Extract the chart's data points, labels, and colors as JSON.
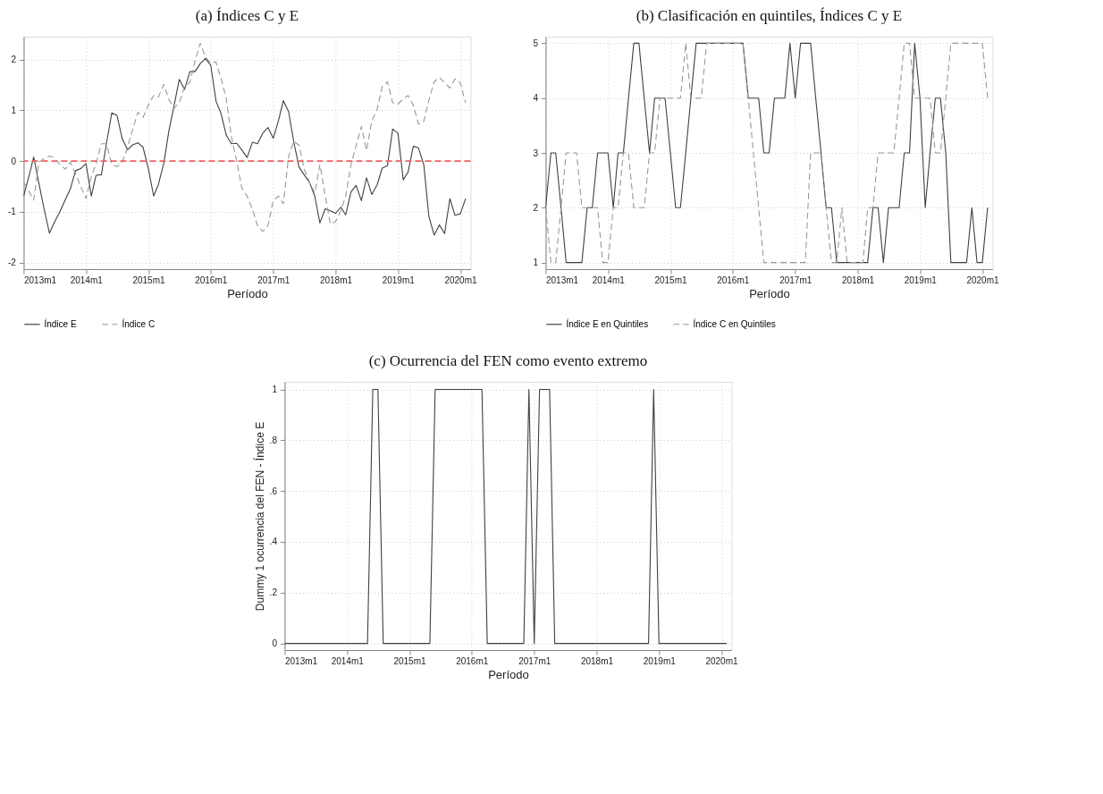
{
  "chart_data": [
    {
      "type": "line",
      "title": "(a) Índices C y E",
      "xlabel": "Período",
      "legend": "bottom",
      "grid": true,
      "x": [
        "2013-01",
        "2013-02",
        "2013-03",
        "2013-04",
        "2013-05",
        "2013-06",
        "2013-07",
        "2013-08",
        "2013-09",
        "2013-10",
        "2013-11",
        "2013-12",
        "2014-01",
        "2014-02",
        "2014-03",
        "2014-04",
        "2014-05",
        "2014-06",
        "2014-07",
        "2014-08",
        "2014-09",
        "2014-10",
        "2014-11",
        "2014-12",
        "2015-01",
        "2015-02",
        "2015-03",
        "2015-04",
        "2015-05",
        "2015-06",
        "2015-07",
        "2015-08",
        "2015-09",
        "2015-10",
        "2015-11",
        "2015-12",
        "2016-01",
        "2016-02",
        "2016-03",
        "2016-04",
        "2016-05",
        "2016-06",
        "2016-07",
        "2016-08",
        "2016-09",
        "2016-10",
        "2016-11",
        "2016-12",
        "2017-01",
        "2017-02",
        "2017-03",
        "2017-04",
        "2017-05",
        "2017-06",
        "2017-07",
        "2017-08",
        "2017-09",
        "2017-10",
        "2017-11",
        "2017-12",
        "2018-01",
        "2018-02",
        "2018-03",
        "2018-04",
        "2018-05",
        "2018-06",
        "2018-07",
        "2018-08",
        "2018-09",
        "2018-10",
        "2018-11",
        "2018-12",
        "2019-01",
        "2019-02",
        "2019-03",
        "2019-04",
        "2019-05",
        "2019-06",
        "2019-07",
        "2019-08",
        "2019-09",
        "2019-10",
        "2019-11",
        "2019-12",
        "2020-01",
        "2020-02"
      ],
      "xlim": [
        "2013-01",
        "2020-03"
      ],
      "xticks": [
        {
          "value": "2013-01",
          "label": "2013m1"
        },
        {
          "value": "2014-01",
          "label": "2014m1"
        },
        {
          "value": "2015-01",
          "label": "2015m1"
        },
        {
          "value": "2016-01",
          "label": "2016m1"
        },
        {
          "value": "2017-01",
          "label": "2017m1"
        },
        {
          "value": "2018-01",
          "label": "2018m1"
        },
        {
          "value": "2019-01",
          "label": "2019m1"
        },
        {
          "value": "2020-01",
          "label": "2020m1"
        }
      ],
      "ylim": [
        -2.13,
        2.45
      ],
      "yticks": [
        -2,
        -1,
        0,
        1,
        2
      ],
      "ref_lines": [
        {
          "axis": "y",
          "value": 0,
          "color": "#f06060",
          "line_style": "dashed"
        }
      ],
      "series": [
        {
          "name": "Índice E",
          "color": "#404040",
          "line_style": "solid",
          "values": [
            -0.69,
            -0.3,
            0.08,
            -0.45,
            -0.95,
            -1.42,
            -1.2,
            -1.0,
            -0.77,
            -0.55,
            -0.19,
            -0.15,
            -0.05,
            -0.69,
            -0.28,
            -0.27,
            0.35,
            0.95,
            0.9,
            0.44,
            0.22,
            0.32,
            0.36,
            0.27,
            -0.15,
            -0.69,
            -0.46,
            -0.05,
            0.59,
            1.1,
            1.61,
            1.41,
            1.76,
            1.76,
            1.92,
            2.02,
            1.89,
            1.18,
            0.94,
            0.51,
            0.34,
            0.35,
            0.22,
            0.07,
            0.37,
            0.34,
            0.55,
            0.66,
            0.45,
            0.8,
            1.19,
            0.97,
            0.38,
            -0.12,
            -0.27,
            -0.42,
            -0.69,
            -1.22,
            -0.94,
            -0.98,
            -1.03,
            -0.91,
            -1.06,
            -0.61,
            -0.48,
            -0.78,
            -0.33,
            -0.66,
            -0.47,
            -0.14,
            -0.09,
            0.63,
            0.55,
            -0.37,
            -0.22,
            0.29,
            0.26,
            -0.07,
            -1.09,
            -1.46,
            -1.26,
            -1.43,
            -0.74,
            -1.07,
            -1.04,
            -0.74
          ]
        },
        {
          "name": "Índice C",
          "color": "#999999",
          "line_style": "dashed",
          "values": [
            -0.42,
            -0.6,
            -0.77,
            -0.02,
            0.05,
            0.1,
            0.06,
            -0.07,
            -0.16,
            -0.02,
            -0.25,
            -0.5,
            -0.74,
            -0.31,
            -0.05,
            0.34,
            0.34,
            -0.07,
            -0.11,
            -0.02,
            0.27,
            0.62,
            0.96,
            0.86,
            1.1,
            1.29,
            1.26,
            1.51,
            1.21,
            1.04,
            1.15,
            1.47,
            1.55,
            1.97,
            2.32,
            2.05,
            1.93,
            1.95,
            1.63,
            1.23,
            0.48,
            0.0,
            -0.53,
            -0.69,
            -0.95,
            -1.27,
            -1.39,
            -1.27,
            -0.78,
            -0.69,
            -0.84,
            0.09,
            0.39,
            0.31,
            -0.15,
            -0.42,
            -0.63,
            -0.07,
            -0.68,
            -1.24,
            -1.19,
            -0.98,
            -0.69,
            -0.07,
            0.3,
            0.68,
            0.21,
            0.79,
            1.02,
            1.47,
            1.56,
            1.15,
            1.12,
            1.23,
            1.29,
            1.1,
            0.73,
            0.78,
            1.2,
            1.56,
            1.65,
            1.54,
            1.44,
            1.62,
            1.54,
            1.15
          ]
        }
      ]
    },
    {
      "type": "line",
      "title": "(b) Clasificación en quintiles, Índices C y E",
      "xlabel": "Período",
      "legend": "bottom",
      "grid": true,
      "x": [
        "2013-01",
        "2013-02",
        "2013-03",
        "2013-04",
        "2013-05",
        "2013-06",
        "2013-07",
        "2013-08",
        "2013-09",
        "2013-10",
        "2013-11",
        "2013-12",
        "2014-01",
        "2014-02",
        "2014-03",
        "2014-04",
        "2014-05",
        "2014-06",
        "2014-07",
        "2014-08",
        "2014-09",
        "2014-10",
        "2014-11",
        "2014-12",
        "2015-01",
        "2015-02",
        "2015-03",
        "2015-04",
        "2015-05",
        "2015-06",
        "2015-07",
        "2015-08",
        "2015-09",
        "2015-10",
        "2015-11",
        "2015-12",
        "2016-01",
        "2016-02",
        "2016-03",
        "2016-04",
        "2016-05",
        "2016-06",
        "2016-07",
        "2016-08",
        "2016-09",
        "2016-10",
        "2016-11",
        "2016-12",
        "2017-01",
        "2017-02",
        "2017-03",
        "2017-04",
        "2017-05",
        "2017-06",
        "2017-07",
        "2017-08",
        "2017-09",
        "2017-10",
        "2017-11",
        "2017-12",
        "2018-01",
        "2018-02",
        "2018-03",
        "2018-04",
        "2018-05",
        "2018-06",
        "2018-07",
        "2018-08",
        "2018-09",
        "2018-10",
        "2018-11",
        "2018-12",
        "2019-01",
        "2019-02",
        "2019-03",
        "2019-04",
        "2019-05",
        "2019-06",
        "2019-07",
        "2019-08",
        "2019-09",
        "2019-10",
        "2019-11",
        "2019-12",
        "2020-01",
        "2020-02"
      ],
      "xlim": [
        "2013-01",
        "2020-03"
      ],
      "xticks": [
        {
          "value": "2013-01",
          "label": "2013m1"
        },
        {
          "value": "2014-01",
          "label": "2014m1"
        },
        {
          "value": "2015-01",
          "label": "2015m1"
        },
        {
          "value": "2016-01",
          "label": "2016m1"
        },
        {
          "value": "2017-01",
          "label": "2017m1"
        },
        {
          "value": "2018-01",
          "label": "2018m1"
        },
        {
          "value": "2019-01",
          "label": "2019m1"
        },
        {
          "value": "2020-01",
          "label": "2020m1"
        }
      ],
      "ylim": [
        0.88,
        5.12
      ],
      "yticks": [
        1,
        2,
        3,
        4,
        5
      ],
      "series": [
        {
          "name": "Índice E en Quintiles",
          "color": "#404040",
          "line_style": "solid",
          "values": [
            2,
            3,
            3,
            2,
            1,
            1,
            1,
            1,
            2,
            2,
            3,
            3,
            3,
            2,
            3,
            3,
            4,
            5,
            5,
            4,
            3,
            4,
            4,
            4,
            3,
            2,
            2,
            3,
            4,
            5,
            5,
            5,
            5,
            5,
            5,
            5,
            5,
            5,
            5,
            4,
            4,
            4,
            3,
            3,
            4,
            4,
            4,
            5,
            4,
            5,
            5,
            5,
            4,
            3,
            2,
            2,
            1,
            1,
            1,
            1,
            1,
            1,
            1,
            2,
            2,
            1,
            2,
            2,
            2,
            3,
            3,
            5,
            4,
            2,
            3,
            4,
            4,
            3,
            1,
            1,
            1,
            1,
            2,
            1,
            1,
            2
          ]
        },
        {
          "name": "Índice C en Quintiles",
          "color": "#999999",
          "line_style": "dashed",
          "values": [
            2,
            1,
            1,
            2,
            3,
            3,
            3,
            2,
            2,
            2,
            2,
            1,
            1,
            2,
            2,
            3,
            3,
            2,
            2,
            2,
            3,
            3,
            4,
            4,
            4,
            4,
            4,
            5,
            4,
            4,
            4,
            5,
            5,
            5,
            5,
            5,
            5,
            5,
            5,
            4,
            3,
            2,
            1,
            1,
            1,
            1,
            1,
            1,
            1,
            1,
            1,
            3,
            3,
            3,
            2,
            1,
            1,
            2,
            1,
            1,
            1,
            1,
            2,
            2,
            3,
            3,
            3,
            3,
            4,
            5,
            5,
            4,
            4,
            4,
            4,
            3,
            3,
            4,
            5,
            5,
            5,
            5,
            5,
            5,
            5,
            4
          ]
        }
      ]
    },
    {
      "type": "line",
      "title": "(c) Ocurrencia del FEN como evento extremo",
      "xlabel": "Período",
      "ylabel": "Dummy 1 ocurrencia del FEN - Índice E",
      "grid": true,
      "x": [
        "2013-01",
        "2013-02",
        "2013-03",
        "2013-04",
        "2013-05",
        "2013-06",
        "2013-07",
        "2013-08",
        "2013-09",
        "2013-10",
        "2013-11",
        "2013-12",
        "2014-01",
        "2014-02",
        "2014-03",
        "2014-04",
        "2014-05",
        "2014-06",
        "2014-07",
        "2014-08",
        "2014-09",
        "2014-10",
        "2014-11",
        "2014-12",
        "2015-01",
        "2015-02",
        "2015-03",
        "2015-04",
        "2015-05",
        "2015-06",
        "2015-07",
        "2015-08",
        "2015-09",
        "2015-10",
        "2015-11",
        "2015-12",
        "2016-01",
        "2016-02",
        "2016-03",
        "2016-04",
        "2016-05",
        "2016-06",
        "2016-07",
        "2016-08",
        "2016-09",
        "2016-10",
        "2016-11",
        "2016-12",
        "2017-01",
        "2017-02",
        "2017-03",
        "2017-04",
        "2017-05",
        "2017-06",
        "2017-07",
        "2017-08",
        "2017-09",
        "2017-10",
        "2017-11",
        "2017-12",
        "2018-01",
        "2018-02",
        "2018-03",
        "2018-04",
        "2018-05",
        "2018-06",
        "2018-07",
        "2018-08",
        "2018-09",
        "2018-10",
        "2018-11",
        "2018-12",
        "2019-01",
        "2019-02",
        "2019-03",
        "2019-04",
        "2019-05",
        "2019-06",
        "2019-07",
        "2019-08",
        "2019-09",
        "2019-10",
        "2019-11",
        "2019-12",
        "2020-01",
        "2020-02"
      ],
      "xlim": [
        "2013-01",
        "2020-03"
      ],
      "xticks": [
        {
          "value": "2013-01",
          "label": "2013m1"
        },
        {
          "value": "2014-01",
          "label": "2014m1"
        },
        {
          "value": "2015-01",
          "label": "2015m1"
        },
        {
          "value": "2016-01",
          "label": "2016m1"
        },
        {
          "value": "2017-01",
          "label": "2017m1"
        },
        {
          "value": "2018-01",
          "label": "2018m1"
        },
        {
          "value": "2019-01",
          "label": "2019m1"
        },
        {
          "value": "2020-01",
          "label": "2020m1"
        }
      ],
      "ylim": [
        -0.026,
        1.03
      ],
      "yticks": [
        0,
        {
          "value": 0.2,
          "label": ".2"
        },
        {
          "value": 0.4,
          "label": ".4"
        },
        {
          "value": 0.6,
          "label": ".6"
        },
        {
          "value": 0.8,
          "label": ".8"
        },
        1
      ],
      "series": [
        {
          "color": "#404040",
          "line_style": "solid",
          "values": [
            0,
            0,
            0,
            0,
            0,
            0,
            0,
            0,
            0,
            0,
            0,
            0,
            0,
            0,
            0,
            0,
            0,
            1,
            1,
            0,
            0,
            0,
            0,
            0,
            0,
            0,
            0,
            0,
            0,
            1,
            1,
            1,
            1,
            1,
            1,
            1,
            1,
            1,
            1,
            0,
            0,
            0,
            0,
            0,
            0,
            0,
            0,
            1,
            0,
            1,
            1,
            1,
            0,
            0,
            0,
            0,
            0,
            0,
            0,
            0,
            0,
            0,
            0,
            0,
            0,
            0,
            0,
            0,
            0,
            0,
            0,
            1,
            0,
            0,
            0,
            0,
            0,
            0,
            0,
            0,
            0,
            0,
            0,
            0,
            0,
            0
          ]
        }
      ]
    }
  ]
}
